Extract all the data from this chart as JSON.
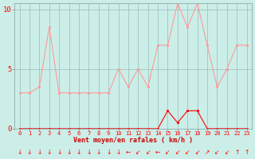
{
  "hours": [
    0,
    1,
    2,
    3,
    4,
    5,
    6,
    7,
    8,
    9,
    10,
    11,
    12,
    13,
    14,
    15,
    16,
    17,
    18,
    19,
    20,
    21,
    22,
    23
  ],
  "wind_avg": [
    3,
    3,
    3.5,
    8.5,
    3,
    3,
    3,
    3,
    3,
    3,
    5,
    3.5,
    5,
    3.5,
    7,
    7,
    10.5,
    8.5,
    10.5,
    7,
    3.5,
    5,
    7,
    7
  ],
  "wind_gusts": [
    0,
    0,
    0,
    0,
    0,
    0,
    0,
    0,
    0,
    0,
    0,
    0,
    0,
    0,
    0,
    1.5,
    0.5,
    1.5,
    1.5,
    0,
    0,
    0,
    0,
    0
  ],
  "xlabel": "Vent moyen/en rafales ( km/h )",
  "ylim": [
    0,
    10.5
  ],
  "yticks": [
    0,
    5,
    10
  ],
  "xlim": [
    -0.5,
    23.5
  ],
  "bg_color": "#cceee8",
  "line_color_avg": "#ff9999",
  "line_color_gust": "#ff0000",
  "grid_color": "#99bbbb",
  "axis_color": "#ff0000",
  "tick_color": "#ff0000",
  "label_color": "#cc0000",
  "arrow_symbols": [
    "↓",
    "↓",
    "↓",
    "↓",
    "↓",
    "↓",
    "↓",
    "↓",
    "↓",
    "↓",
    "↓",
    "←",
    "↙",
    "↙",
    "←",
    "↙",
    "↙",
    "↙",
    "↙",
    "↗",
    "↙",
    "↙",
    "↑",
    "↑"
  ]
}
